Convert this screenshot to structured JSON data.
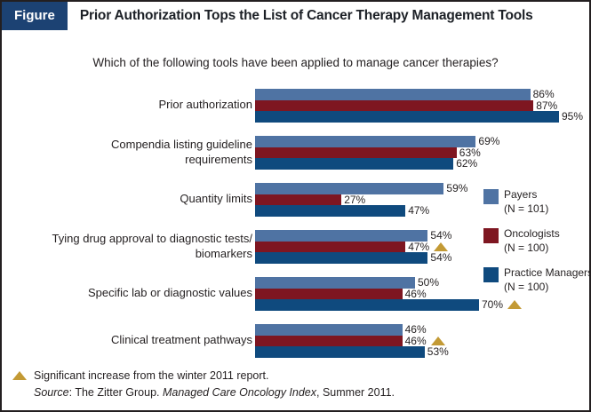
{
  "figure_header": {
    "tag_label": "Figure",
    "tag_bg_color": "#1c4273",
    "title": "Prior Authorization Tops the List of Cancer Therapy Management Tools"
  },
  "question": "Which of the following tools have been applied to manage cancer therapies?",
  "chart_data": {
    "type": "bar",
    "orientation": "horizontal",
    "value_unit": "%",
    "xlim": [
      0,
      100
    ],
    "grid": false,
    "legend_position": "right",
    "categories": [
      {
        "lines": [
          "Prior authorization"
        ]
      },
      {
        "lines": [
          "Compendia listing guideline",
          "requirements"
        ]
      },
      {
        "lines": [
          "Quantity limits"
        ]
      },
      {
        "lines": [
          "Tying drug approval to diagnostic tests/",
          "biomarkers"
        ]
      },
      {
        "lines": [
          "Specific lab or diagnostic values"
        ]
      },
      {
        "lines": [
          "Clinical treatment pathways"
        ]
      }
    ],
    "series": [
      {
        "name": "Payers",
        "n_label": "(N = 101)",
        "color": "#4f73a3",
        "values": [
          86,
          69,
          59,
          54,
          50,
          46
        ]
      },
      {
        "name": "Oncologists",
        "n_label": "(N = 100)",
        "color": "#7e1621",
        "values": [
          87,
          63,
          27,
          47,
          46,
          46
        ]
      },
      {
        "name": "Practice Managers",
        "n_label": "(N = 100)",
        "color": "#0f4a7e",
        "values": [
          95,
          62,
          47,
          54,
          70,
          53
        ]
      }
    ],
    "significance_markers": [
      {
        "category_index": 3,
        "series_index": 1
      },
      {
        "category_index": 4,
        "series_index": 2
      },
      {
        "category_index": 5,
        "series_index": 1
      }
    ],
    "marker_color": "#c39a35"
  },
  "footnotes": {
    "significance_note": "Significant increase from the winter 2011 report.",
    "source_segments": [
      {
        "text": "Source",
        "italic": true
      },
      {
        "text": ": The Zitter Group. ",
        "italic": false
      },
      {
        "text": "Managed Care Oncology Index",
        "italic": true
      },
      {
        "text": ", Summer 2011.",
        "italic": false
      }
    ]
  }
}
